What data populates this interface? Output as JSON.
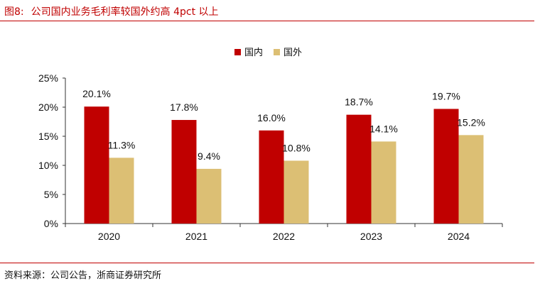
{
  "figure": {
    "number": "图8:",
    "title": "公司国内业务毛利率较国外约高 4pct 以上",
    "source": "资料来源：公司公告，浙商证券研究所"
  },
  "chart_data": {
    "type": "bar",
    "title": "公司国内业务毛利率较国外约高 4pct 以上",
    "categories": [
      "2020",
      "2021",
      "2022",
      "2023",
      "2024"
    ],
    "series": [
      {
        "name": "国内",
        "color": "#c00000",
        "values": [
          20.1,
          17.8,
          16.0,
          18.7,
          19.7
        ],
        "labels": [
          "20.1%",
          "17.8%",
          "16.0%",
          "18.7%",
          "19.7%"
        ]
      },
      {
        "name": "国外",
        "color": "#dcbf74",
        "values": [
          11.3,
          9.4,
          10.8,
          14.1,
          15.2
        ],
        "labels": [
          "11.3%",
          "9.4%",
          "10.8%",
          "14.1%",
          "15.2%"
        ]
      }
    ],
    "ylim": [
      0,
      25
    ],
    "yticks": [
      0,
      5,
      10,
      15,
      20,
      25
    ],
    "ytick_labels": [
      "0%",
      "5%",
      "10%",
      "15%",
      "20%",
      "25%"
    ],
    "xlabel": "",
    "ylabel": "",
    "grid": false,
    "legend_position": "top-center"
  }
}
